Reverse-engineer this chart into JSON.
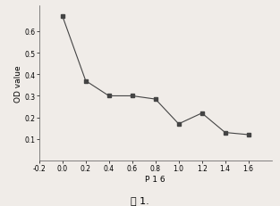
{
  "x": [
    0.0,
    0.2,
    0.4,
    0.6,
    0.8,
    1.0,
    1.2,
    1.4,
    1.6
  ],
  "y": [
    0.67,
    0.37,
    0.3,
    0.3,
    0.285,
    0.17,
    0.22,
    0.13,
    0.12
  ],
  "xlabel": "P 1 6",
  "ylabel": "OD value",
  "xlim": [
    -0.2,
    1.8
  ],
  "ylim": [
    0.0,
    0.72
  ],
  "xticks": [
    -0.2,
    0.0,
    0.2,
    0.4,
    0.6,
    0.8,
    1.0,
    1.2,
    1.4,
    1.6
  ],
  "yticks": [
    0.1,
    0.2,
    0.3,
    0.4,
    0.5,
    0.6
  ],
  "marker": "s",
  "marker_size": 3,
  "line_color": "#444444",
  "line_width": 0.8,
  "caption": "图 1.",
  "background_color": "#f0ece8"
}
